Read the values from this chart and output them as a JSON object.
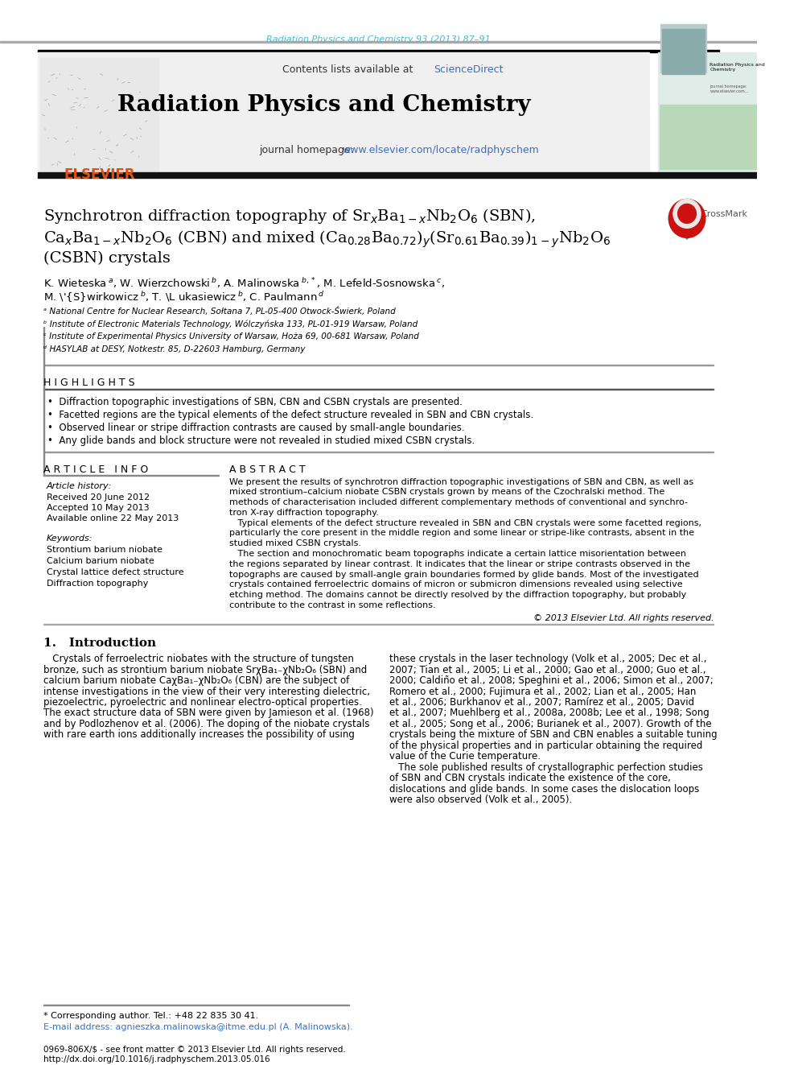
{
  "journal_ref": "Radiation Physics and Chemistry 93 (2013) 87–91",
  "contents_line": "Contents lists available at ",
  "sciencedirect": "ScienceDirect",
  "journal_name": "Radiation Physics and Chemistry",
  "journal_homepage_pre": "journal homepage: ",
  "journal_url": "www.elsevier.com/locate/radphyschem",
  "highlights_title": "H I G H L I G H T S",
  "highlights": [
    "•  Diffraction topographic investigations of SBN, CBN and CSBN crystals are presented.",
    "•  Facetted regions are the typical elements of the defect structure revealed in SBN and CBN crystals.",
    "•  Observed linear or stripe diffraction contrasts are caused by small-angle boundaries.",
    "•  Any glide bands and block structure were not revealed in studied mixed CSBN crystals."
  ],
  "article_info_title": "A R T I C L E   I N F O",
  "article_history_title": "Article history:",
  "received": "Received 20 June 2012",
  "accepted": "Accepted 10 May 2013",
  "available": "Available online 22 May 2013",
  "keywords_title": "Keywords:",
  "keywords": [
    "Strontium barium niobate",
    "Calcium barium niobate",
    "Crystal lattice defect structure",
    "Diffraction topography"
  ],
  "abstract_title": "A B S T R A C T",
  "copyright": "© 2013 Elsevier Ltd. All rights reserved.",
  "intro_title": "1.   Introduction",
  "footnote_line1": "* Corresponding author. Tel.: +48 22 835 30 41.",
  "footnote_line2": "E-mail address: agnieszka.malinowska@itme.edu.pl (A. Malinowska).",
  "doi_line1": "0969-806X/$ - see front matter © 2013 Elsevier Ltd. All rights reserved.",
  "doi_line2": "http://dx.doi.org/10.1016/j.radphyschem.2013.05.016",
  "bg_color": "#f0f0f0",
  "cyan_color": "#4db8cc",
  "blue_link": "#3a6fc4",
  "affil_plain": [
    "ᵃ National Centre for Nuclear Research, Sołtana 7, PL-05-400 Otwock-Świerk, Poland",
    "ᵇ Institute of Electronic Materials Technology, Wólczyńska 133, PL-01-919 Warsaw, Poland",
    "ᶜ Institute of Experimental Physics University of Warsaw, Hoża 69, 00-681 Warsaw, Poland",
    "ᵈ HASYLAB at DESY, Notkestr. 85, D-22603 Hamburg, Germany"
  ],
  "abstract_lines": [
    "We present the results of synchrotron diffraction topographic investigations of SBN and CBN, as well as",
    "mixed strontium–calcium niobate CSBN crystals grown by means of the Czochralski method. The",
    "methods of characterisation included different complementary methods of conventional and synchro-",
    "tron X-ray diffraction topography.",
    "   Typical elements of the defect structure revealed in SBN and CBN crystals were some facetted regions,",
    "particularly the core present in the middle region and some linear or stripe-like contrasts, absent in the",
    "studied mixed CSBN crystals.",
    "   The section and monochromatic beam topographs indicate a certain lattice misorientation between",
    "the regions separated by linear contrast. It indicates that the linear or stripe contrasts observed in the",
    "topographs are caused by small-angle grain boundaries formed by glide bands. Most of the investigated",
    "crystals contained ferroelectric domains of micron or submicron dimensions revealed using selective",
    "etching method. The domains cannot be directly resolved by the diffraction topography, but probably",
    "contribute to the contrast in some reflections."
  ],
  "intro_col1_lines": [
    "   Crystals of ferroelectric niobates with the structure of tungsten",
    "bronze, such as strontium barium niobate SrχBa₁₋χNb₂O₆ (SBN) and",
    "calcium barium niobate CaχBa₁₋χNb₂O₆ (CBN) are the subject of",
    "intense investigations in the view of their very interesting dielectric,",
    "piezoelectric, pyroelectric and nonlinear electro-optical properties.",
    "The exact structure data of SBN were given by Jamieson et al. (1968)",
    "and by Podlozhenov et al. (2006). The doping of the niobate crystals",
    "with rare earth ions additionally increases the possibility of using"
  ],
  "intro_col2_lines": [
    "these crystals in the laser technology (Volk et al., 2005; Dec et al.,",
    "2007; Tian et al., 2005; Li et al., 2000; Gao et al., 2000; Guo et al.,",
    "2000; Caldiño et al., 2008; Speghini et al., 2006; Simon et al., 2007;",
    "Romero et al., 2000; Fujimura et al., 2002; Lian et al., 2005; Han",
    "et al., 2006; Burkhanov et al., 2007; Ramírez et al., 2005; David",
    "et al., 2007; Muehlberg et al., 2008a, 2008b; Lee et al., 1998; Song",
    "et al., 2005; Song et al., 2006; Burianek et al., 2007). Growth of the",
    "crystals being the mixture of SBN and CBN enables a suitable tuning",
    "of the physical properties and in particular obtaining the required",
    "value of the Curie temperature.",
    "   The sole published results of crystallographic perfection studies",
    "of SBN and CBN crystals indicate the existence of the core,",
    "dislocations and glide bands. In some cases the dislocation loops",
    "were also observed (Volk et al., 2005)."
  ]
}
